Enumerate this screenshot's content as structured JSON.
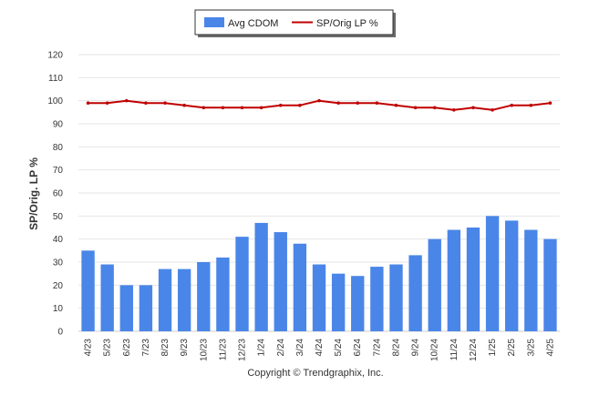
{
  "chart_data": {
    "type": "bar",
    "categories": [
      "4/23",
      "5/23",
      "6/23",
      "7/23",
      "8/23",
      "9/23",
      "10/23",
      "11/23",
      "12/23",
      "1/24",
      "2/24",
      "3/24",
      "4/24",
      "5/24",
      "6/24",
      "7/24",
      "8/24",
      "9/24",
      "10/24",
      "11/24",
      "12/24",
      "1/25",
      "2/25",
      "3/25",
      "4/25"
    ],
    "series": [
      {
        "name": "Avg CDOM",
        "type": "bar",
        "color": "#4a86e8",
        "values": [
          35,
          29,
          20,
          20,
          27,
          27,
          30,
          32,
          41,
          47,
          43,
          38,
          29,
          25,
          24,
          28,
          29,
          33,
          40,
          44,
          45,
          50,
          48,
          44,
          40
        ]
      },
      {
        "name": "SP/Orig LP %",
        "type": "line",
        "color": "#c00000",
        "values": [
          99,
          99,
          100,
          99,
          99,
          98,
          97,
          97,
          97,
          97,
          98,
          98,
          100,
          99,
          99,
          99,
          98,
          97,
          97,
          96,
          97,
          96,
          98,
          98,
          99
        ]
      }
    ],
    "ylabel": "SP/Orig. LP %",
    "xlabel": "",
    "ylim": [
      0,
      120
    ],
    "yticks": [
      0,
      10,
      20,
      30,
      40,
      50,
      60,
      70,
      80,
      90,
      100,
      110,
      120
    ],
    "grid": true,
    "legend_position": "top-center"
  },
  "legend": {
    "bar_label": "Avg CDOM",
    "line_label": "SP/Orig LP %"
  },
  "footer": {
    "copyright": "Copyright © Trendgraphix, Inc."
  }
}
